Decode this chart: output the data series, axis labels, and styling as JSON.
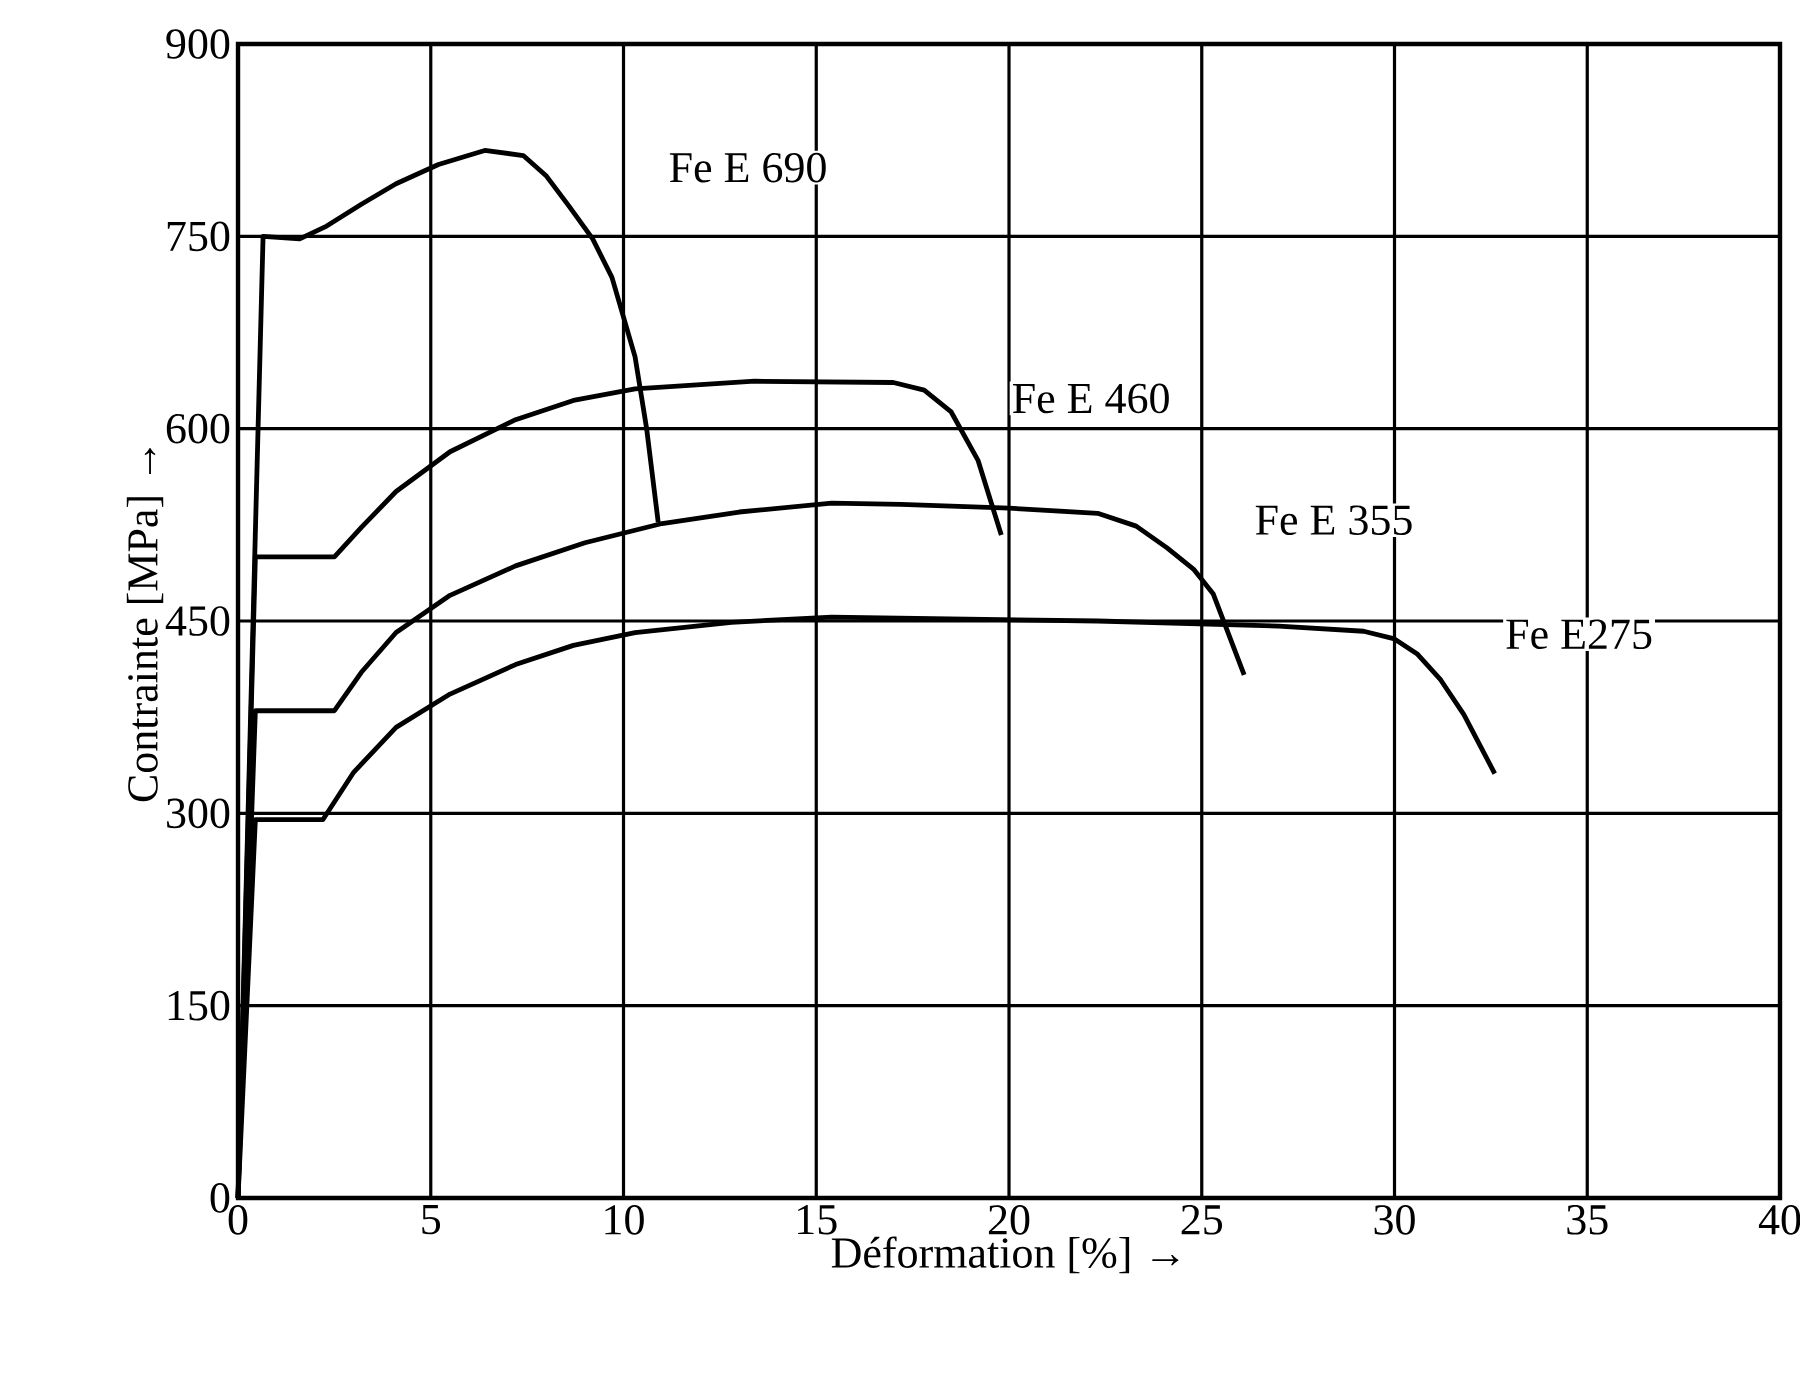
{
  "chart_data": {
    "type": "line",
    "xlabel": "Déformation [%] →",
    "ylabel": "Contrainte [MPa] →",
    "xlim": [
      0,
      40
    ],
    "ylim": [
      0,
      900
    ],
    "xticks": [
      0,
      5,
      10,
      15,
      20,
      25,
      30,
      35,
      40
    ],
    "yticks": [
      0,
      150,
      300,
      450,
      600,
      750,
      900
    ],
    "grid": true,
    "marker": "none",
    "line_style": "solid",
    "series": [
      {
        "name": "Fe E 690",
        "color": "#000000",
        "x": [
          0,
          0.65,
          1.6,
          2.3,
          3.2,
          4.1,
          5.2,
          6.4,
          7.4,
          8.0,
          8.6,
          9.2,
          9.7,
          10.3,
          10.6,
          10.9
        ],
        "values": [
          0,
          750,
          748,
          758,
          775,
          791,
          806,
          817,
          813,
          797,
          773,
          748,
          718,
          656,
          600,
          527
        ]
      },
      {
        "name": "Fe E 460",
        "color": "#000000",
        "x": [
          0,
          0.45,
          2.5,
          3.2,
          4.1,
          5.5,
          7.2,
          8.7,
          10.3,
          13.4,
          17.0,
          17.8,
          18.5,
          19.2,
          19.8
        ],
        "values": [
          0,
          500,
          500,
          523,
          551,
          582,
          607,
          622,
          631,
          637,
          636,
          630,
          613,
          575,
          517
        ]
      },
      {
        "name": "Fe E 355",
        "color": "#000000",
        "x": [
          0,
          0.45,
          2.5,
          3.2,
          4.1,
          5.5,
          7.2,
          9.0,
          11.0,
          13.0,
          15.4,
          17.2,
          20.0,
          22.3,
          23.3,
          24.1,
          24.8,
          25.3,
          26.1
        ],
        "values": [
          0,
          380,
          380,
          410,
          441,
          470,
          493,
          511,
          526,
          535,
          542,
          541,
          538,
          534,
          524,
          507,
          490,
          471,
          408
        ]
      },
      {
        "name": "Fe E275",
        "color": "#000000",
        "x": [
          0,
          0.45,
          2.2,
          3.0,
          4.1,
          5.5,
          7.2,
          8.7,
          10.3,
          12.8,
          15.4,
          22.3,
          27.0,
          29.2,
          30.0,
          30.6,
          31.2,
          31.8,
          32.6
        ],
        "values": [
          0,
          295,
          295,
          332,
          367,
          393,
          416,
          431,
          441,
          449,
          453,
          450,
          446,
          442,
          436,
          424,
          404,
          377,
          331
        ]
      }
    ]
  }
}
